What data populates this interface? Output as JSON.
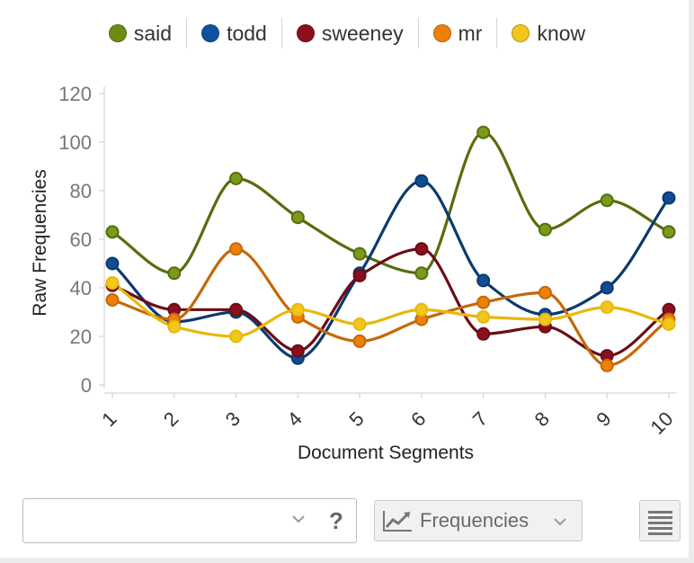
{
  "legend": [
    {
      "label": "said",
      "color": "#6e8c14"
    },
    {
      "label": "todd",
      "color": "#10519e"
    },
    {
      "label": "sweeney",
      "color": "#8c0f1d"
    },
    {
      "label": "mr",
      "color": "#ee8008"
    },
    {
      "label": "know",
      "color": "#f2c61a"
    }
  ],
  "chart_data": {
    "type": "line",
    "xlabel": "Document Segments",
    "ylabel": "Raw Frequencies",
    "x": [
      1,
      2,
      3,
      4,
      5,
      6,
      7,
      8,
      9,
      10
    ],
    "x_tick_labels": [
      "1",
      "2",
      "3",
      "4",
      "5",
      "6",
      "7",
      "8",
      "9",
      "10"
    ],
    "y_ticks": [
      "0",
      "20",
      "40",
      "60",
      "80",
      "100",
      "120"
    ],
    "ylim": [
      0,
      120
    ],
    "smooth": true,
    "grid": false,
    "legend_position": "top",
    "series": [
      {
        "name": "said",
        "line_color": "#566d0e",
        "marker_color": "#7a9b1a",
        "values": [
          63,
          46,
          85,
          69,
          54,
          46,
          104,
          64,
          76,
          63
        ]
      },
      {
        "name": "todd",
        "line_color": "#0c3a6e",
        "marker_color": "#0f4c93",
        "values": [
          50,
          26,
          30,
          11,
          46,
          84,
          43,
          29,
          40,
          77
        ]
      },
      {
        "name": "sweeney",
        "line_color": "#6b0d16",
        "marker_color": "#8c0f1d",
        "values": [
          41,
          31,
          31,
          14,
          45,
          56,
          21,
          24,
          12,
          31
        ]
      },
      {
        "name": "mr",
        "line_color": "#c4680a",
        "marker_color": "#ee8008",
        "values": [
          35,
          27,
          56,
          28,
          18,
          27,
          34,
          38,
          8,
          27
        ]
      },
      {
        "name": "know",
        "line_color": "#e8b80c",
        "marker_color": "#f2c61a",
        "values": [
          42,
          24,
          20,
          31,
          25,
          31,
          28,
          27,
          32,
          25
        ]
      }
    ]
  },
  "toolbar": {
    "segment_value": "",
    "help_label": "?",
    "freq_label": "Frequencies"
  }
}
